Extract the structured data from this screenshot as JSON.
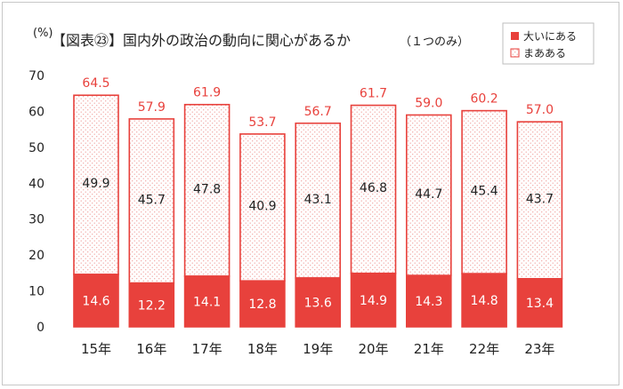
{
  "chart_data": {
    "type": "bar",
    "stacked": true,
    "title": "【図表㉓】国内外の政治の動向に関心があるか",
    "subtitle": "（１つのみ）",
    "ylabel": "(%)",
    "ylim": [
      0,
      70
    ],
    "yticks": [
      0,
      10,
      20,
      30,
      40,
      50,
      60,
      70
    ],
    "categories": [
      "15年",
      "16年",
      "17年",
      "18年",
      "19年",
      "20年",
      "21年",
      "22年",
      "23年"
    ],
    "series": [
      {
        "name": "大いにある",
        "values": [
          14.6,
          12.2,
          14.1,
          12.8,
          13.6,
          14.9,
          14.3,
          14.8,
          13.4
        ]
      },
      {
        "name": "まあある",
        "values": [
          49.9,
          45.7,
          47.8,
          40.9,
          43.1,
          46.8,
          44.7,
          45.4,
          43.7
        ]
      }
    ],
    "totals": [
      64.5,
      57.9,
      61.9,
      53.7,
      56.7,
      61.7,
      59.0,
      60.2,
      57.0
    ],
    "legend_position": "top-right",
    "grid": false,
    "colors": {
      "accent": "#e8413c",
      "dots": "#f2a8a5",
      "text": "#222222"
    }
  }
}
